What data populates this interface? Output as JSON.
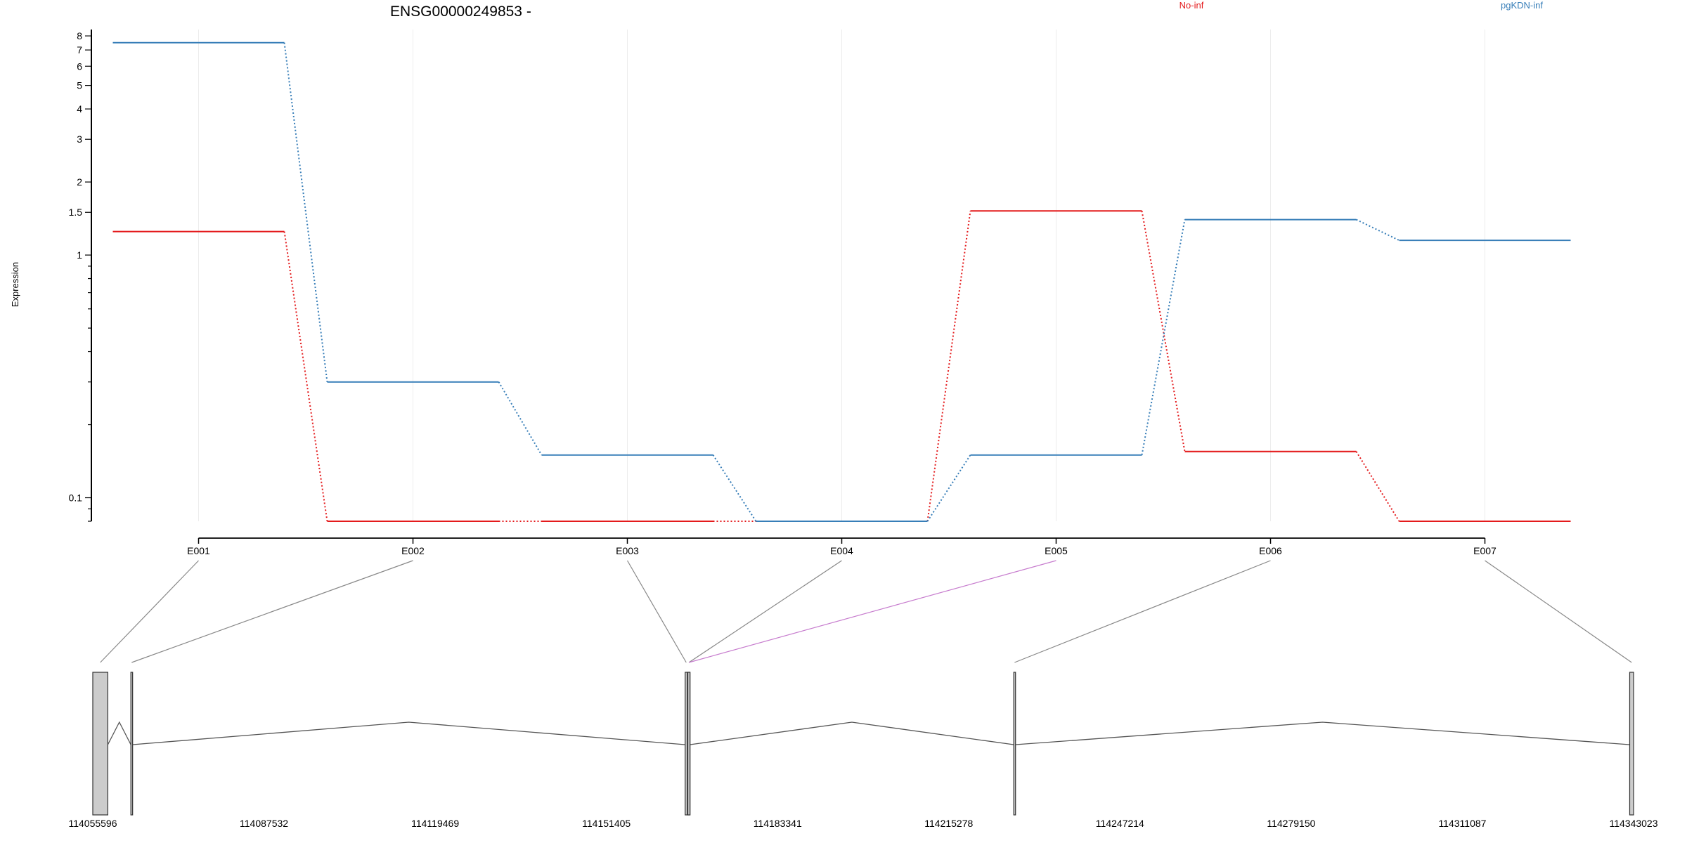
{
  "chart_data": {
    "type": "line",
    "title": "ENSG00000249853 -",
    "ylabel": "Expression",
    "xlabel": "",
    "y_scale": "log",
    "ylim": [
      0.08,
      8.5
    ],
    "y_ticks": [
      "0.1",
      "1",
      "1.5",
      "2",
      "3",
      "4",
      "5",
      "6",
      "7",
      "8"
    ],
    "grid": "vertical, light",
    "legend_position": "top",
    "categories": [
      "E001",
      "E002",
      "E003",
      "E004",
      "E005",
      "E006",
      "E007"
    ],
    "series": [
      {
        "name": "No-inf",
        "color": "#e41a1c",
        "values": [
          1.25,
          0.08,
          0.08,
          0.08,
          1.52,
          0.155,
          0.08
        ]
      },
      {
        "name": "pgKDN-inf",
        "color": "#377eb8",
        "values": [
          7.5,
          0.3,
          0.15,
          0.08,
          0.15,
          1.4,
          1.15
        ]
      }
    ],
    "exon_connector_colors": [
      "#888888",
      "#888888",
      "#888888",
      "#888888",
      "#c77cce",
      "#888888",
      "#888888"
    ],
    "gene_model": {
      "coordinate_ticks": [
        "114055596",
        "114087532",
        "114119469",
        "114151405",
        "114183341",
        "114215278",
        "114247214",
        "114279150",
        "114311087",
        "114343023"
      ],
      "exons": [
        {
          "id": "E001",
          "start": 114055596,
          "end": 114058400
        },
        {
          "id": "E002",
          "start": 114062700,
          "end": 114063000
        },
        {
          "id": "E003",
          "start": 114166100,
          "end": 114166500
        },
        {
          "id": "E004",
          "start": 114166600,
          "end": 114167000
        },
        {
          "id": "E005",
          "start": 114166600,
          "end": 114167000
        },
        {
          "id": "E006",
          "start": 114227400,
          "end": 114227700
        },
        {
          "id": "E007",
          "start": 114342300,
          "end": 114343023
        }
      ],
      "exon_color": "#cccccc"
    }
  }
}
